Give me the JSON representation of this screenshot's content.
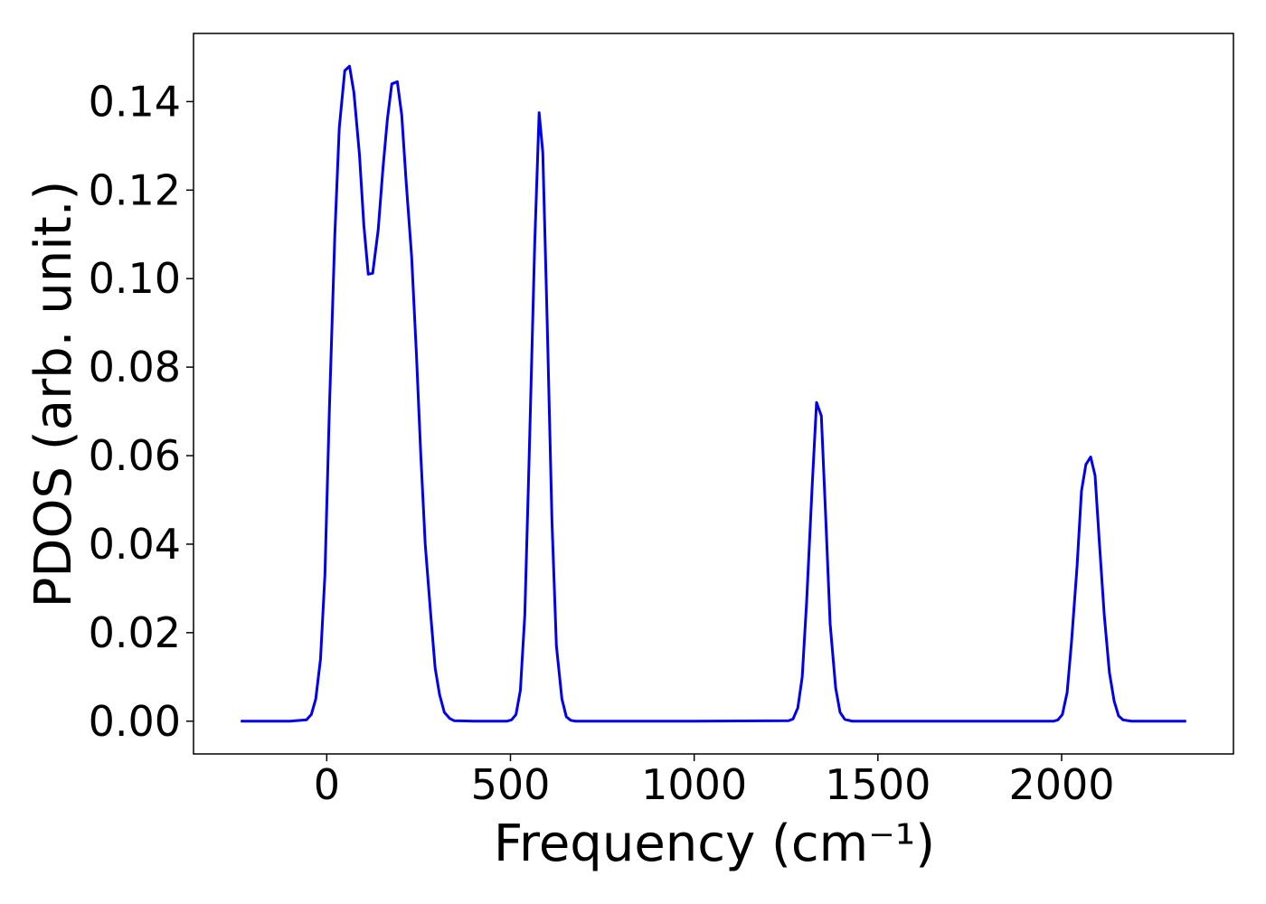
{
  "chart_data": {
    "type": "line",
    "xlabel": "Frequency (cm⁻¹)",
    "ylabel": "PDOS (arb. unit.)",
    "x": [
      -234,
      -100,
      -55,
      -42,
      -30,
      -17,
      -5,
      7,
      22,
      34,
      49,
      62,
      74,
      89,
      101,
      113,
      125,
      140,
      153,
      165,
      177,
      192,
      204,
      216,
      231,
      244,
      256,
      268,
      283,
      295,
      307,
      320,
      335,
      347,
      400,
      490,
      503,
      515,
      527,
      539,
      551,
      566,
      578,
      588,
      600,
      613,
      625,
      640,
      652,
      664,
      677,
      700,
      1000,
      1257,
      1269,
      1282,
      1294,
      1306,
      1321,
      1333,
      1346,
      1358,
      1370,
      1385,
      1397,
      1410,
      1430,
      1700,
      1978,
      1990,
      2002,
      2015,
      2027,
      2042,
      2054,
      2066,
      2079,
      2091,
      2103,
      2116,
      2130,
      2143,
      2155,
      2167,
      2190,
      2339
    ],
    "series": [
      {
        "name": "PDOS",
        "color": "#0000ee",
        "values": [
          0,
          0,
          0.0003,
          0.0015,
          0.005,
          0.014,
          0.033,
          0.07,
          0.11,
          0.134,
          0.147,
          0.148,
          0.142,
          0.128,
          0.112,
          0.101,
          0.1012,
          0.111,
          0.125,
          0.136,
          0.144,
          0.1445,
          0.137,
          0.122,
          0.105,
          0.083,
          0.06,
          0.04,
          0.024,
          0.012,
          0.006,
          0.002,
          0.0006,
          0.0001,
          0,
          0,
          0.0003,
          0.0015,
          0.007,
          0.024,
          0.06,
          0.108,
          0.1375,
          0.1285,
          0.09,
          0.045,
          0.017,
          0.005,
          0.001,
          0.0002,
          0,
          0,
          0,
          0.0001,
          0.0005,
          0.003,
          0.01,
          0.027,
          0.053,
          0.072,
          0.069,
          0.046,
          0.022,
          0.0075,
          0.002,
          0.0004,
          0,
          0,
          0,
          0.0003,
          0.0015,
          0.0065,
          0.018,
          0.035,
          0.052,
          0.058,
          0.0597,
          0.0555,
          0.04,
          0.024,
          0.011,
          0.0045,
          0.0012,
          0.0003,
          0,
          0
        ]
      }
    ],
    "xlim": [
      -362.6,
      2467.6
    ],
    "ylim": [
      -0.0074,
      0.1554
    ],
    "xticks": [
      0,
      500,
      1000,
      1500,
      2000
    ],
    "yticks": [
      {
        "value": 0,
        "label": "0.00"
      },
      {
        "value": 0.02,
        "label": "0.02"
      },
      {
        "value": 0.04,
        "label": "0.04"
      },
      {
        "value": 0.06,
        "label": "0.06"
      },
      {
        "value": 0.08,
        "label": "0.08"
      },
      {
        "value": 0.1,
        "label": "0.10"
      },
      {
        "value": 0.12,
        "label": "0.12"
      },
      {
        "value": 0.14,
        "label": "0.14"
      }
    ],
    "grid": false
  }
}
